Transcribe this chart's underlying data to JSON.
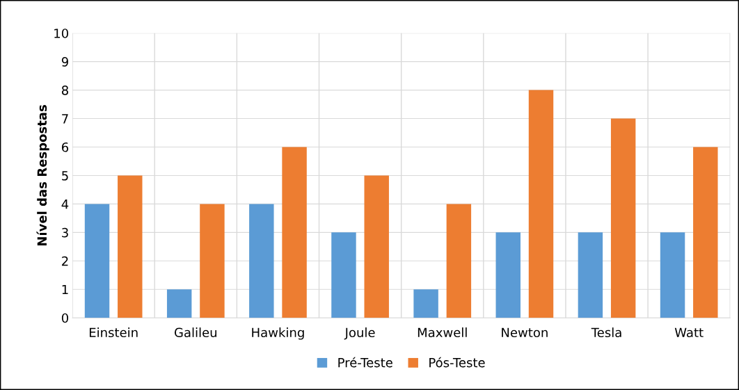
{
  "chart_data": {
    "type": "bar",
    "ylabel": "Nível das Respostas",
    "categories": [
      "Einstein",
      "Galileu",
      "Hawking",
      "Joule",
      "Maxwell",
      "Newton",
      "Tesla",
      "Watt"
    ],
    "series": [
      {
        "name": "Pré-Teste",
        "color": "#5b9bd5",
        "values": [
          4,
          1,
          4,
          3,
          1,
          3,
          3,
          3
        ]
      },
      {
        "name": "Pós-Teste",
        "color": "#ed7d31",
        "values": [
          5,
          4,
          6,
          5,
          4,
          8,
          7,
          6
        ]
      }
    ],
    "ylim": [
      0,
      10
    ],
    "yticks": [
      0,
      1,
      2,
      3,
      4,
      5,
      6,
      7,
      8,
      9,
      10
    ],
    "grid": true,
    "legend": "bottom"
  }
}
